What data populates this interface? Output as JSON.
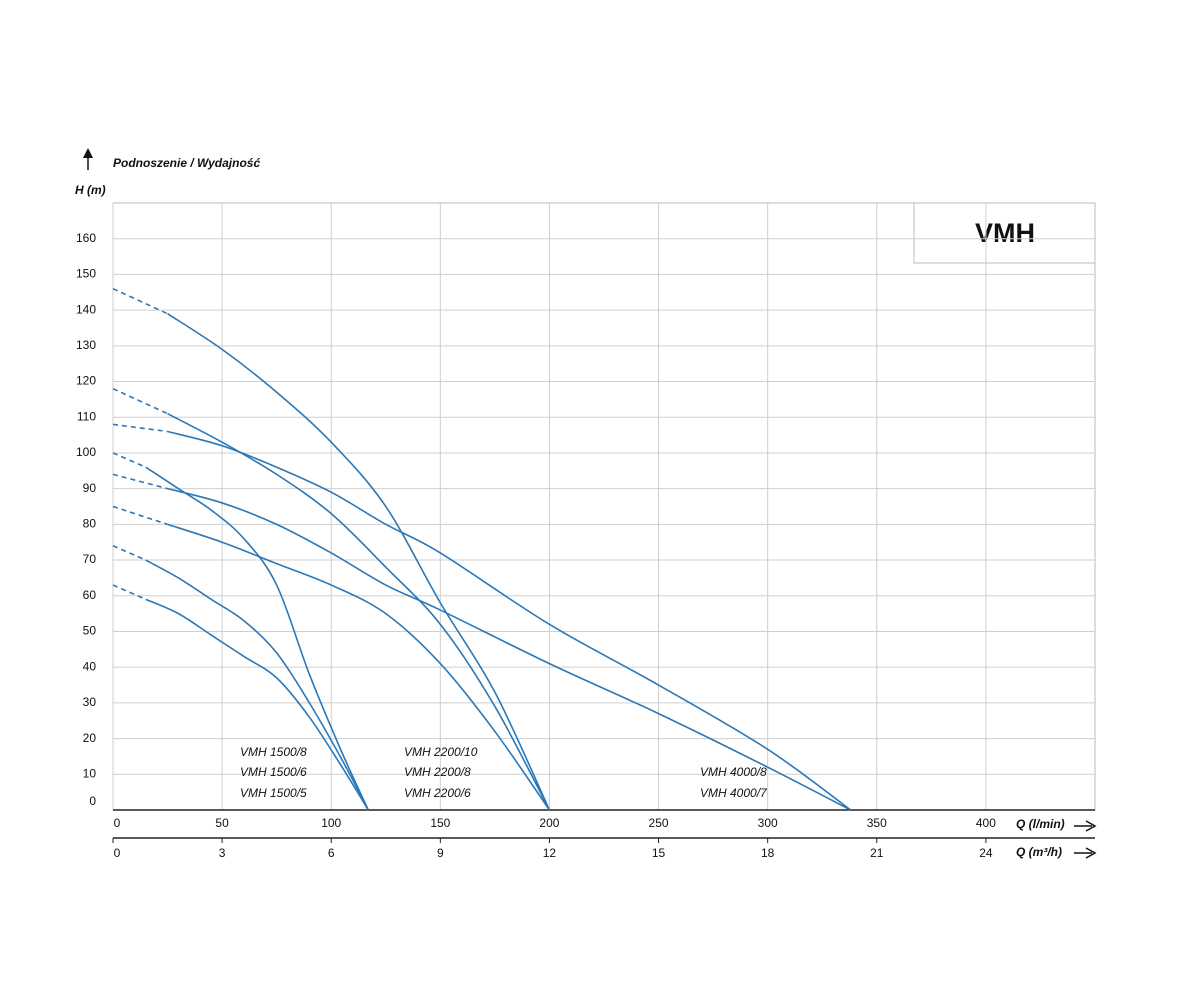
{
  "badge": "VMH",
  "chart_data": {
    "type": "line",
    "title": "Podnoszenie / Wydajność",
    "y_label": "H (m)",
    "x_label": "Q (l/min)",
    "x2_label": "Q (m³/h)",
    "xlim": [
      0,
      450
    ],
    "xticks": [
      0,
      50,
      100,
      150,
      200,
      250,
      300,
      350,
      400
    ],
    "x2lim": [
      0,
      27
    ],
    "x2ticks": [
      0,
      3,
      6,
      9,
      12,
      15,
      18,
      21,
      24
    ],
    "ylim": [
      0,
      170
    ],
    "yticks": [
      0,
      10,
      20,
      30,
      40,
      50,
      60,
      70,
      80,
      90,
      100,
      110,
      120,
      130,
      140,
      150,
      160
    ],
    "grid": true,
    "series": [
      {
        "name": "VMH 2200/10",
        "color": "#2a78b8",
        "x": [
          0,
          25,
          50,
          75,
          100,
          125,
          150,
          175,
          200
        ],
        "values": [
          146,
          139,
          129,
          117,
          103,
          85,
          58,
          33,
          0
        ]
      },
      {
        "name": "VMH 2200/8",
        "color": "#2a78b8",
        "x": [
          0,
          25,
          50,
          75,
          100,
          125,
          150,
          175,
          200
        ],
        "values": [
          118,
          111,
          103,
          94,
          83,
          68,
          52,
          29,
          0
        ]
      },
      {
        "name": "VMH 2200/6",
        "color": "#2a78b8",
        "x": [
          0,
          25,
          50,
          75,
          100,
          125,
          150,
          175,
          200
        ],
        "values": [
          85,
          80,
          75,
          69,
          63,
          55,
          41,
          22,
          0
        ]
      },
      {
        "name": "VMH 1500/8",
        "color": "#2a78b8",
        "x": [
          0,
          15,
          30,
          45,
          60,
          75,
          90,
          105,
          117
        ],
        "values": [
          100,
          96,
          90,
          84,
          76,
          63,
          38,
          16,
          0
        ]
      },
      {
        "name": "VMH 1500/6",
        "color": "#2a78b8",
        "x": [
          0,
          15,
          30,
          45,
          60,
          75,
          90,
          105,
          117
        ],
        "values": [
          74,
          70,
          65,
          59,
          53,
          44,
          30,
          14,
          0
        ]
      },
      {
        "name": "VMH 1500/5",
        "color": "#2a78b8",
        "x": [
          0,
          15,
          30,
          45,
          60,
          75,
          90,
          105,
          117
        ],
        "values": [
          63,
          59,
          55,
          49,
          43,
          37,
          26,
          12,
          0
        ]
      },
      {
        "name": "VMH 4000/8",
        "color": "#2a78b8",
        "x": [
          0,
          25,
          50,
          75,
          100,
          125,
          150,
          200,
          250,
          300,
          338
        ],
        "values": [
          108,
          106,
          102,
          96,
          89,
          80,
          72,
          52,
          35,
          17,
          0
        ]
      },
      {
        "name": "VMH 4000/7",
        "color": "#2a78b8",
        "x": [
          0,
          25,
          50,
          75,
          100,
          125,
          150,
          200,
          250,
          300,
          338
        ],
        "values": [
          94,
          90,
          86,
          80,
          72,
          63,
          56,
          41,
          27,
          12,
          0
        ]
      }
    ]
  }
}
